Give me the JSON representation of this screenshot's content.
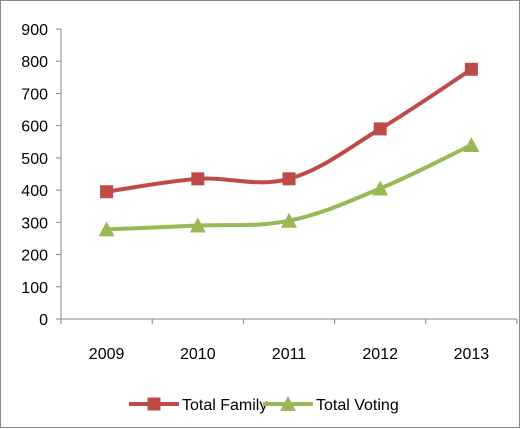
{
  "chart_data": {
    "type": "line",
    "title": "",
    "xlabel": "",
    "ylabel": "",
    "categories": [
      "2009",
      "2010",
      "2011",
      "2012",
      "2013"
    ],
    "ylim": [
      0,
      900
    ],
    "yticks": [
      0,
      100,
      200,
      300,
      400,
      500,
      600,
      700,
      800,
      900
    ],
    "grid": false,
    "legend_position": "bottom",
    "series": [
      {
        "name": "Total Family",
        "values": [
          395,
          435,
          435,
          590,
          775
        ],
        "color": "#be4b48",
        "marker": "square"
      },
      {
        "name": "Total Voting",
        "values": [
          278,
          290,
          305,
          405,
          540
        ],
        "color": "#98b954",
        "marker": "triangle"
      }
    ]
  }
}
